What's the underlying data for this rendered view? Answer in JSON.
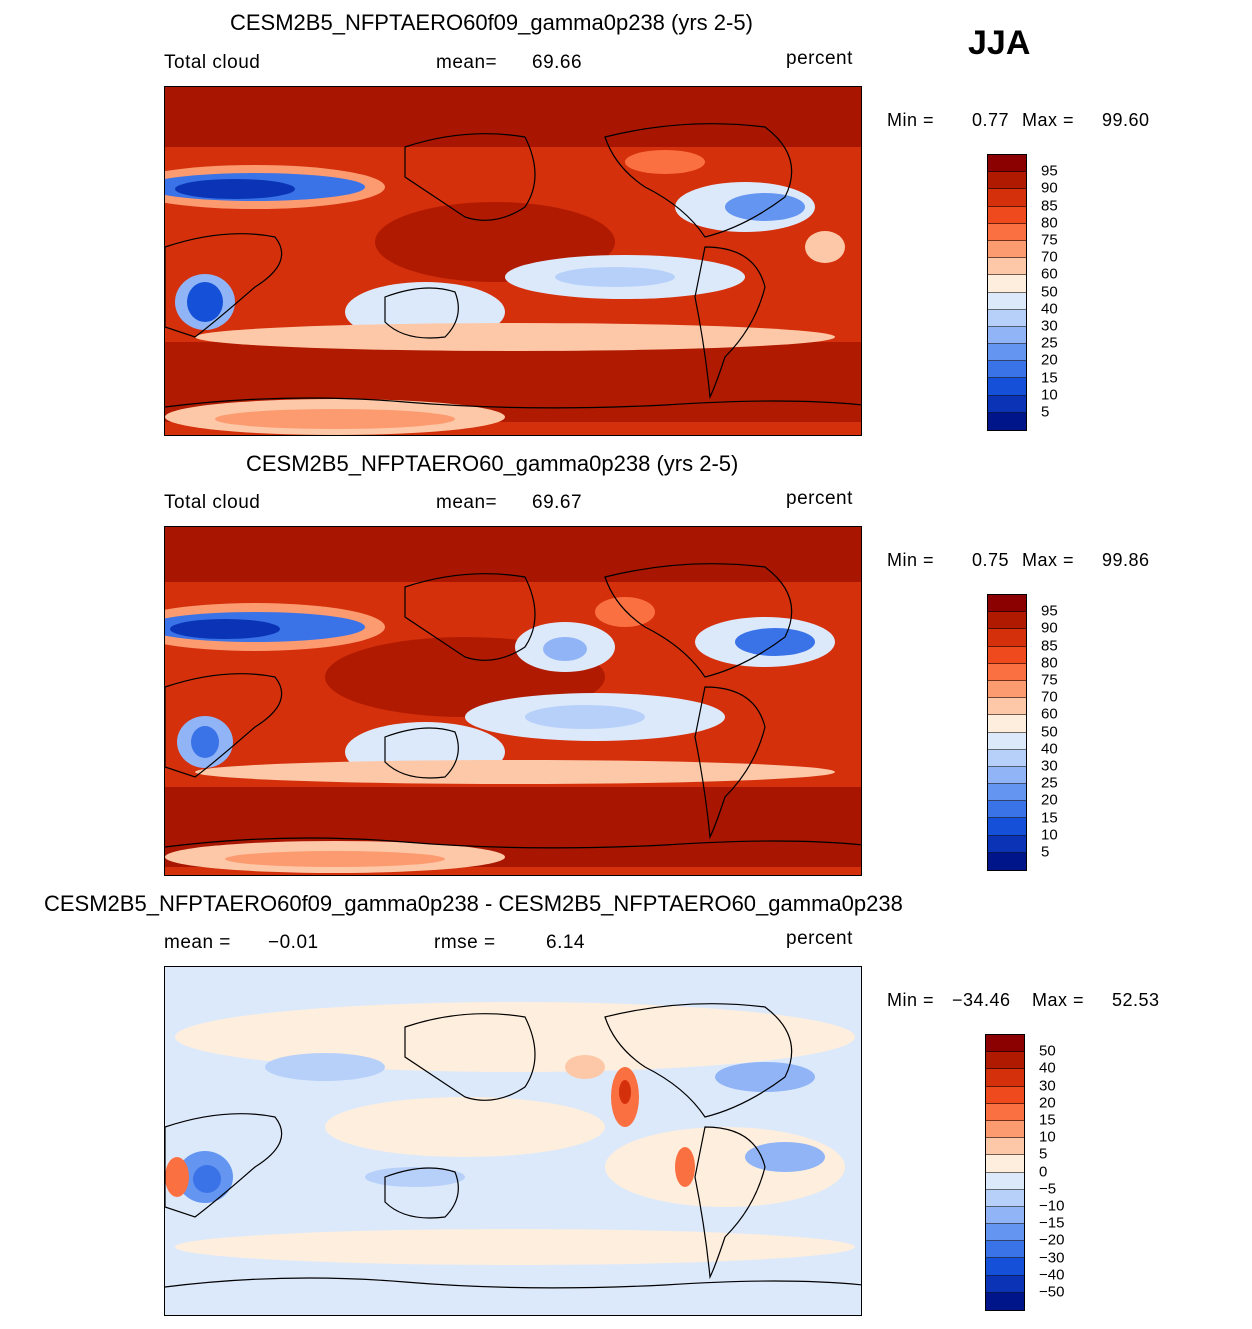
{
  "season": "JJA",
  "panels": [
    {
      "title": "CESM2B5_NFPTAERO60f09_gamma0p238 (yrs 2-5)",
      "left_text": "Total cloud",
      "stat1_label": "mean=",
      "stat1_value": "69.66",
      "units": "percent",
      "min_text": "Min =",
      "min_value": "0.77",
      "max_text": "Max =",
      "max_value": "99.60",
      "colors": [
        "#8b0000",
        "#b01a00",
        "#d4300c",
        "#ee4a1d",
        "#fb7040",
        "#fc9a70",
        "#fdc8a8",
        "#feeedd",
        "#dce9fb",
        "#b7d0fa",
        "#90b4f6",
        "#6495f0",
        "#3a73e8",
        "#1450d8",
        "#0a33b5",
        "#00158a"
      ],
      "labels": [
        "95",
        "90",
        "85",
        "80",
        "75",
        "70",
        "60",
        "50",
        "40",
        "30",
        "25",
        "20",
        "15",
        "10",
        "5"
      ]
    },
    {
      "title": "CESM2B5_NFPTAERO60_gamma0p238 (yrs 2-5)",
      "left_text": "Total cloud",
      "stat1_label": "mean=",
      "stat1_value": "69.67",
      "units": "percent",
      "min_text": "Min =",
      "min_value": "0.75",
      "max_text": "Max =",
      "max_value": "99.86",
      "colors": [
        "#8b0000",
        "#b01a00",
        "#d4300c",
        "#ee4a1d",
        "#fb7040",
        "#fc9a70",
        "#fdc8a8",
        "#feeedd",
        "#dce9fb",
        "#b7d0fa",
        "#90b4f6",
        "#6495f0",
        "#3a73e8",
        "#1450d8",
        "#0a33b5",
        "#00158a"
      ],
      "labels": [
        "95",
        "90",
        "85",
        "80",
        "75",
        "70",
        "60",
        "50",
        "40",
        "30",
        "25",
        "20",
        "15",
        "10",
        "5"
      ]
    },
    {
      "title": "CESM2B5_NFPTAERO60f09_gamma0p238 - CESM2B5_NFPTAERO60_gamma0p238",
      "stat1_label": "mean =",
      "stat1_value": "−0.01",
      "stat2_label": "rmse =",
      "stat2_value": "6.14",
      "units": "percent",
      "min_text": "Min =",
      "min_value": "−34.46",
      "max_text": "Max =",
      "max_value": "52.53",
      "colors": [
        "#8b0000",
        "#b01a00",
        "#d4300c",
        "#ee4a1d",
        "#fb7040",
        "#fc9a70",
        "#fdc8a8",
        "#feeedd",
        "#dce9fb",
        "#b7d0fa",
        "#90b4f6",
        "#6495f0",
        "#3a73e8",
        "#1450d8",
        "#0a33b5",
        "#00158a"
      ],
      "labels": [
        "50",
        "40",
        "30",
        "20",
        "15",
        "10",
        "5",
        "0",
        "−5",
        "−10",
        "−15",
        "−20",
        "−30",
        "−40",
        "−50"
      ]
    }
  ],
  "chart_data": [
    {
      "type": "heatmap",
      "title": "CESM2B5_NFPTAERO60f09_gamma0p238 (yrs 2-5)",
      "variable": "Total cloud",
      "units": "percent",
      "mean": 69.66,
      "min": 0.77,
      "max": 99.6,
      "contour_levels": [
        5,
        10,
        15,
        20,
        25,
        30,
        40,
        50,
        60,
        70,
        75,
        80,
        85,
        90,
        95
      ]
    },
    {
      "type": "heatmap",
      "title": "CESM2B5_NFPTAERO60_gamma0p238 (yrs 2-5)",
      "variable": "Total cloud",
      "units": "percent",
      "mean": 69.67,
      "min": 0.75,
      "max": 99.86,
      "contour_levels": [
        5,
        10,
        15,
        20,
        25,
        30,
        40,
        50,
        60,
        70,
        75,
        80,
        85,
        90,
        95
      ]
    },
    {
      "type": "heatmap",
      "title": "CESM2B5_NFPTAERO60f09_gamma0p238 - CESM2B5_NFPTAERO60_gamma0p238",
      "units": "percent",
      "mean": -0.01,
      "rmse": 6.14,
      "min": -34.46,
      "max": 52.53,
      "contour_levels": [
        -50,
        -40,
        -30,
        -20,
        -15,
        -10,
        -5,
        0,
        5,
        10,
        15,
        20,
        30,
        40,
        50
      ]
    }
  ]
}
